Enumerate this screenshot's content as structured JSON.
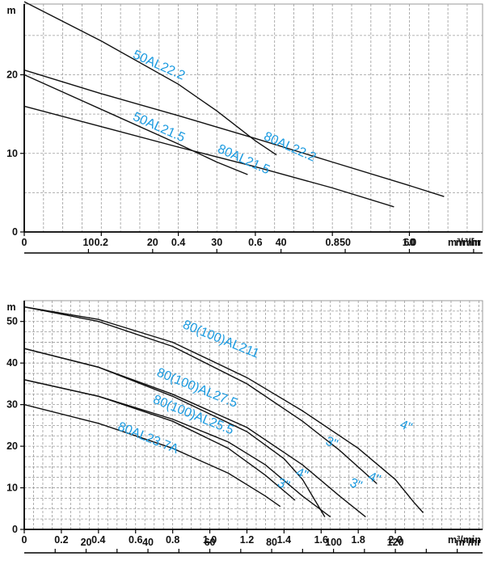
{
  "chart_data": [
    {
      "type": "line",
      "ylabel": "m",
      "xlabel": "m³/min",
      "x2label": "m³/hr",
      "xlim": [
        0,
        1.19
      ],
      "ylim": [
        0,
        29
      ],
      "x_ticks": [
        "0",
        "0.2",
        "0.4",
        "0.6",
        "0.8",
        "1.0"
      ],
      "x_tick_values": [
        0,
        0.2,
        0.4,
        0.6,
        0.8,
        1.0
      ],
      "x2_ticks": [
        "10",
        "20",
        "30",
        "40",
        "50",
        "60"
      ],
      "x2_tick_values": [
        10,
        20,
        30,
        40,
        50,
        60
      ],
      "y_ticks": [
        "0",
        "10",
        "20"
      ],
      "y_tick_values": [
        0,
        10,
        20
      ],
      "grid": true,
      "series": [
        {
          "name": "50AL22.2",
          "points": [
            [
              0,
              29.3
            ],
            [
              0.2,
              24.3
            ],
            [
              0.4,
              18.8
            ],
            [
              0.5,
              15.4
            ],
            [
              0.6,
              11.6
            ],
            [
              0.655,
              9.8
            ]
          ]
        },
        {
          "name": "50AL21.5",
          "points": [
            [
              0,
              20.0
            ],
            [
              0.2,
              15.6
            ],
            [
              0.4,
              11.2
            ],
            [
              0.5,
              8.9
            ],
            [
              0.58,
              7.3
            ]
          ]
        },
        {
          "name": "80AL22.2",
          "points": [
            [
              0,
              20.6
            ],
            [
              0.2,
              17.6
            ],
            [
              0.4,
              14.8
            ],
            [
              0.6,
              11.9
            ],
            [
              0.8,
              8.9
            ],
            [
              1.0,
              5.9
            ],
            [
              1.09,
              4.5
            ]
          ]
        },
        {
          "name": "80AL21.5",
          "points": [
            [
              0,
              16.0
            ],
            [
              0.2,
              13.4
            ],
            [
              0.4,
              10.8
            ],
            [
              0.6,
              8.3
            ],
            [
              0.8,
              5.6
            ],
            [
              0.96,
              3.2
            ]
          ]
        }
      ],
      "labels": [
        {
          "text": "50AL22.2",
          "x": 0.28,
          "y": 22.2,
          "angle": 24
        },
        {
          "text": "50AL21.5",
          "x": 0.28,
          "y": 14.3,
          "angle": 24
        },
        {
          "text": "80AL22.2",
          "x": 0.62,
          "y": 11.8,
          "angle": 24
        },
        {
          "text": "80AL21.5",
          "x": 0.5,
          "y": 10.2,
          "angle": 24
        }
      ]
    },
    {
      "type": "line",
      "ylabel": "m",
      "xlabel": "m³/min",
      "x2label": "m³/hr",
      "xlim": [
        0,
        2.47
      ],
      "ylim": [
        0,
        55
      ],
      "x_ticks": [
        "0",
        "0.2",
        "0.4",
        "0.6",
        "0.8",
        "1.0",
        "1.2",
        "1.4",
        "1.6",
        "1.8",
        "2.0"
      ],
      "x_tick_values": [
        0,
        0.2,
        0.4,
        0.6,
        0.8,
        1.0,
        1.2,
        1.4,
        1.6,
        1.8,
        2.0
      ],
      "x2_ticks": [
        "20",
        "40",
        "60",
        "80",
        "100",
        "120"
      ],
      "x2_tick_values": [
        20,
        40,
        60,
        80,
        100,
        120
      ],
      "y_ticks": [
        "0",
        "10",
        "20",
        "30",
        "40",
        "50"
      ],
      "y_tick_values": [
        0,
        10,
        20,
        30,
        40,
        50
      ],
      "grid": true,
      "series": [
        {
          "name": "80(100)AL211 4\"",
          "points": [
            [
              0,
              53.5
            ],
            [
              0.4,
              50.5
            ],
            [
              0.8,
              45.0
            ],
            [
              1.2,
              36.5
            ],
            [
              1.5,
              28.5
            ],
            [
              1.8,
              19.5
            ],
            [
              2.0,
              12.0
            ],
            [
              2.1,
              6.5
            ],
            [
              2.15,
              4.0
            ]
          ]
        },
        {
          "name": "80(100)AL211 3\"",
          "points": [
            [
              0,
              53.5
            ],
            [
              0.4,
              50.0
            ],
            [
              0.8,
              44.0
            ],
            [
              1.2,
              35.0
            ],
            [
              1.5,
              26.0
            ],
            [
              1.7,
              19.0
            ],
            [
              1.9,
              11.0
            ]
          ]
        },
        {
          "name": "80(100)AL27.5 4\"",
          "points": [
            [
              0,
              43.5
            ],
            [
              0.4,
              39.0
            ],
            [
              0.8,
              32.5
            ],
            [
              1.2,
              24.5
            ],
            [
              1.5,
              15.5
            ],
            [
              1.7,
              8.0
            ],
            [
              1.84,
              3.0
            ]
          ]
        },
        {
          "name": "80(100)AL27.5 3\"",
          "points": [
            [
              0,
              43.5
            ],
            [
              0.4,
              39.0
            ],
            [
              0.8,
              32.0
            ],
            [
              1.2,
              23.5
            ],
            [
              1.4,
              17.0
            ],
            [
              1.5,
              12.0
            ],
            [
              1.58,
              6.0
            ],
            [
              1.62,
              3.0
            ]
          ]
        },
        {
          "name": "80(100)AL25.5 4\"",
          "points": [
            [
              0,
              36.0
            ],
            [
              0.4,
              32.0
            ],
            [
              0.8,
              26.5
            ],
            [
              1.1,
              21.0
            ],
            [
              1.3,
              15.5
            ],
            [
              1.5,
              8.0
            ],
            [
              1.65,
              3.0
            ]
          ]
        },
        {
          "name": "80(100)AL25.5 3\"",
          "points": [
            [
              0,
              36.0
            ],
            [
              0.4,
              32.0
            ],
            [
              0.8,
              26.0
            ],
            [
              1.1,
              19.5
            ],
            [
              1.3,
              13.0
            ],
            [
              1.46,
              7.0
            ]
          ]
        },
        {
          "name": "80AL23.7A",
          "points": [
            [
              0,
              30.0
            ],
            [
              0.4,
              25.5
            ],
            [
              0.8,
              19.5
            ],
            [
              1.1,
              13.5
            ],
            [
              1.3,
              8.0
            ],
            [
              1.38,
              5.5
            ]
          ]
        }
      ],
      "labels": [
        {
          "text": "80(100)AL211",
          "x": 0.85,
          "y": 48.5,
          "angle": 22
        },
        {
          "text": "80(100)AL27.5",
          "x": 0.71,
          "y": 37.0,
          "angle": 22
        },
        {
          "text": "80(100)AL25.5",
          "x": 0.69,
          "y": 30.5,
          "angle": 22
        },
        {
          "text": "80AL23.7A",
          "x": 0.5,
          "y": 24.0,
          "angle": 22
        },
        {
          "text": "4\"",
          "x": 2.02,
          "y": 24.5,
          "angle": 22
        },
        {
          "text": "3\"",
          "x": 1.62,
          "y": 20.5,
          "angle": 22
        },
        {
          "text": "4\"",
          "x": 1.85,
          "y": 12.0,
          "angle": 22
        },
        {
          "text": "3\"",
          "x": 1.75,
          "y": 10.5,
          "angle": 22
        },
        {
          "text": "4\"",
          "x": 1.46,
          "y": 13.0,
          "angle": 22
        },
        {
          "text": "3\"",
          "x": 1.36,
          "y": 10.5,
          "angle": 22
        }
      ]
    }
  ]
}
